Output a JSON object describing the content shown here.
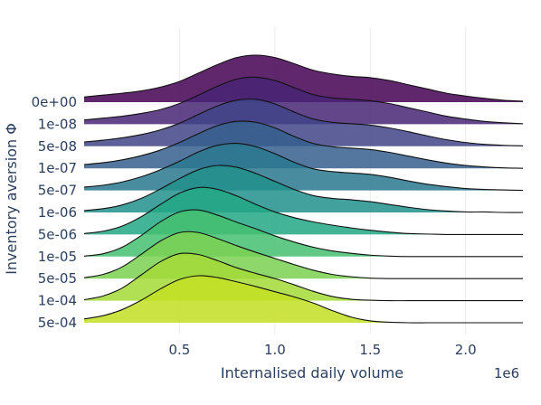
{
  "chart_data": {
    "type": "area",
    "xlabel": "Internalised daily volume",
    "ylabel": "Inventory aversion Φ",
    "x_exponent_label": "1e6",
    "x_range": [
      0,
      2.3
    ],
    "x_ticks": [
      {
        "value": 0.5,
        "label": "0.5"
      },
      {
        "value": 1.0,
        "label": "1.0"
      },
      {
        "value": 1.5,
        "label": "1.5"
      },
      {
        "value": 2.0,
        "label": "2.0"
      }
    ],
    "x_unit_multiplier": 1000000,
    "grid": "vertical",
    "legend": "none",
    "categories": [
      "0e+00",
      "1e-08",
      "5e-08",
      "1e-07",
      "5e-07",
      "1e-06",
      "5e-06",
      "1e-05",
      "5e-05",
      "1e-04",
      "5e-04"
    ],
    "x": [
      0.0,
      0.1,
      0.2,
      0.3,
      0.4,
      0.5,
      0.6,
      0.7,
      0.8,
      0.9,
      1.0,
      1.1,
      1.2,
      1.3,
      1.4,
      1.5,
      1.6,
      1.7,
      1.8,
      1.9,
      2.0,
      2.1,
      2.2,
      2.3
    ],
    "series": [
      {
        "label": "0e+00",
        "color": "#440154",
        "values": [
          0.11,
          0.15,
          0.19,
          0.24,
          0.32,
          0.44,
          0.62,
          0.8,
          0.95,
          1.0,
          0.95,
          0.82,
          0.68,
          0.6,
          0.55,
          0.52,
          0.46,
          0.37,
          0.28,
          0.19,
          0.13,
          0.08,
          0.04,
          0.02
        ]
      },
      {
        "label": "1e-08",
        "color": "#482475",
        "values": [
          0.09,
          0.13,
          0.17,
          0.23,
          0.31,
          0.44,
          0.62,
          0.81,
          0.96,
          1.0,
          0.93,
          0.78,
          0.63,
          0.56,
          0.53,
          0.5,
          0.44,
          0.35,
          0.26,
          0.17,
          0.11,
          0.06,
          0.03,
          0.01
        ]
      },
      {
        "label": "5e-08",
        "color": "#414487",
        "values": [
          0.09,
          0.13,
          0.18,
          0.25,
          0.35,
          0.49,
          0.68,
          0.86,
          0.98,
          1.0,
          0.9,
          0.73,
          0.58,
          0.51,
          0.48,
          0.45,
          0.39,
          0.31,
          0.22,
          0.14,
          0.08,
          0.04,
          0.02,
          0.01
        ]
      },
      {
        "label": "1e-07",
        "color": "#355f8d",
        "values": [
          0.08,
          0.12,
          0.18,
          0.27,
          0.39,
          0.55,
          0.74,
          0.91,
          1.0,
          0.98,
          0.86,
          0.68,
          0.53,
          0.46,
          0.43,
          0.4,
          0.34,
          0.26,
          0.18,
          0.11,
          0.06,
          0.03,
          0.01,
          0.0
        ]
      },
      {
        "label": "5e-07",
        "color": "#2a788e",
        "values": [
          0.07,
          0.11,
          0.18,
          0.29,
          0.44,
          0.62,
          0.82,
          0.96,
          1.0,
          0.93,
          0.78,
          0.6,
          0.46,
          0.4,
          0.37,
          0.34,
          0.28,
          0.2,
          0.13,
          0.08,
          0.04,
          0.02,
          0.01,
          0.0
        ]
      },
      {
        "label": "1e-06",
        "color": "#21918c",
        "values": [
          0.04,
          0.08,
          0.16,
          0.3,
          0.5,
          0.72,
          0.91,
          1.0,
          0.96,
          0.83,
          0.66,
          0.49,
          0.36,
          0.3,
          0.27,
          0.23,
          0.17,
          0.11,
          0.06,
          0.03,
          0.01,
          0.01,
          0.0,
          0.0
        ]
      },
      {
        "label": "5e-06",
        "color": "#22a884",
        "values": [
          0.02,
          0.07,
          0.18,
          0.38,
          0.64,
          0.88,
          1.0,
          0.96,
          0.82,
          0.64,
          0.48,
          0.36,
          0.27,
          0.2,
          0.14,
          0.09,
          0.05,
          0.02,
          0.01,
          0.0,
          0.0,
          0.0,
          0.0,
          0.0
        ]
      },
      {
        "label": "1e-05",
        "color": "#44bf70",
        "values": [
          0.01,
          0.06,
          0.2,
          0.45,
          0.74,
          0.95,
          0.99,
          0.88,
          0.73,
          0.59,
          0.44,
          0.31,
          0.2,
          0.12,
          0.07,
          0.03,
          0.01,
          0.0,
          0.0,
          0.0,
          0.0,
          0.0,
          0.0,
          0.0
        ]
      },
      {
        "label": "5e-05",
        "color": "#7ad151",
        "values": [
          0.02,
          0.09,
          0.25,
          0.52,
          0.8,
          0.98,
          0.98,
          0.85,
          0.7,
          0.56,
          0.43,
          0.3,
          0.18,
          0.09,
          0.04,
          0.01,
          0.0,
          0.0,
          0.0,
          0.0,
          0.0,
          0.0,
          0.0,
          0.0
        ]
      },
      {
        "label": "1e-04",
        "color": "#a5db36",
        "values": [
          0.02,
          0.1,
          0.27,
          0.55,
          0.83,
          1.0,
          0.98,
          0.85,
          0.7,
          0.58,
          0.47,
          0.34,
          0.2,
          0.09,
          0.03,
          0.01,
          0.0,
          0.0,
          0.0,
          0.0,
          0.0,
          0.0,
          0.0,
          0.0
        ]
      },
      {
        "label": "5e-04",
        "color": "#c2df23",
        "values": [
          0.08,
          0.15,
          0.28,
          0.48,
          0.72,
          0.92,
          1.0,
          0.96,
          0.87,
          0.77,
          0.66,
          0.55,
          0.42,
          0.26,
          0.12,
          0.04,
          0.01,
          0.0,
          0.0,
          0.0,
          0.0,
          0.0,
          0.0,
          0.0
        ]
      }
    ]
  }
}
